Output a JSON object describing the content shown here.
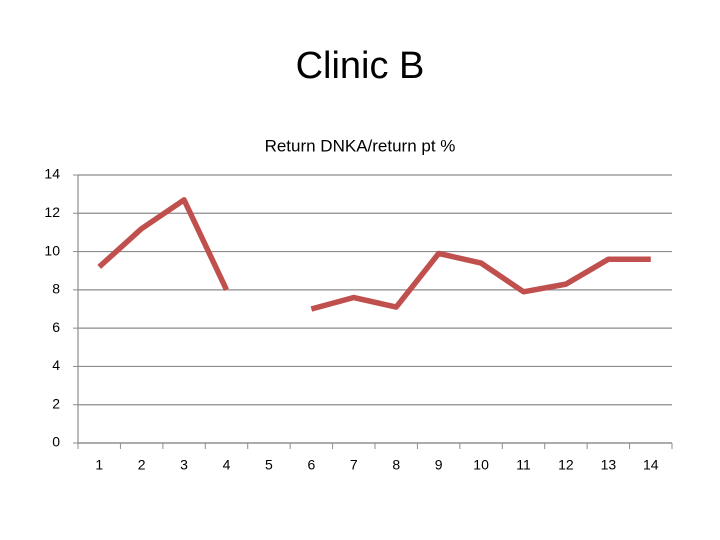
{
  "title": "Clinic B",
  "chart_data": {
    "type": "line",
    "title": "Return DNKA/return pt %",
    "categories": [
      "1",
      "2",
      "3",
      "4",
      "5",
      "6",
      "7",
      "8",
      "9",
      "10",
      "11",
      "12",
      "13",
      "14"
    ],
    "series": [
      {
        "color": "#c0504d",
        "values": [
          9.2,
          11.2,
          12.7,
          8.0,
          null,
          7.0,
          7.6,
          7.1,
          9.9,
          9.4,
          7.9,
          8.3,
          9.6,
          9.6
        ]
      }
    ],
    "ylim": [
      0,
      14
    ],
    "yticks": [
      0,
      2,
      4,
      6,
      8,
      10,
      12,
      14
    ],
    "grid": true
  }
}
